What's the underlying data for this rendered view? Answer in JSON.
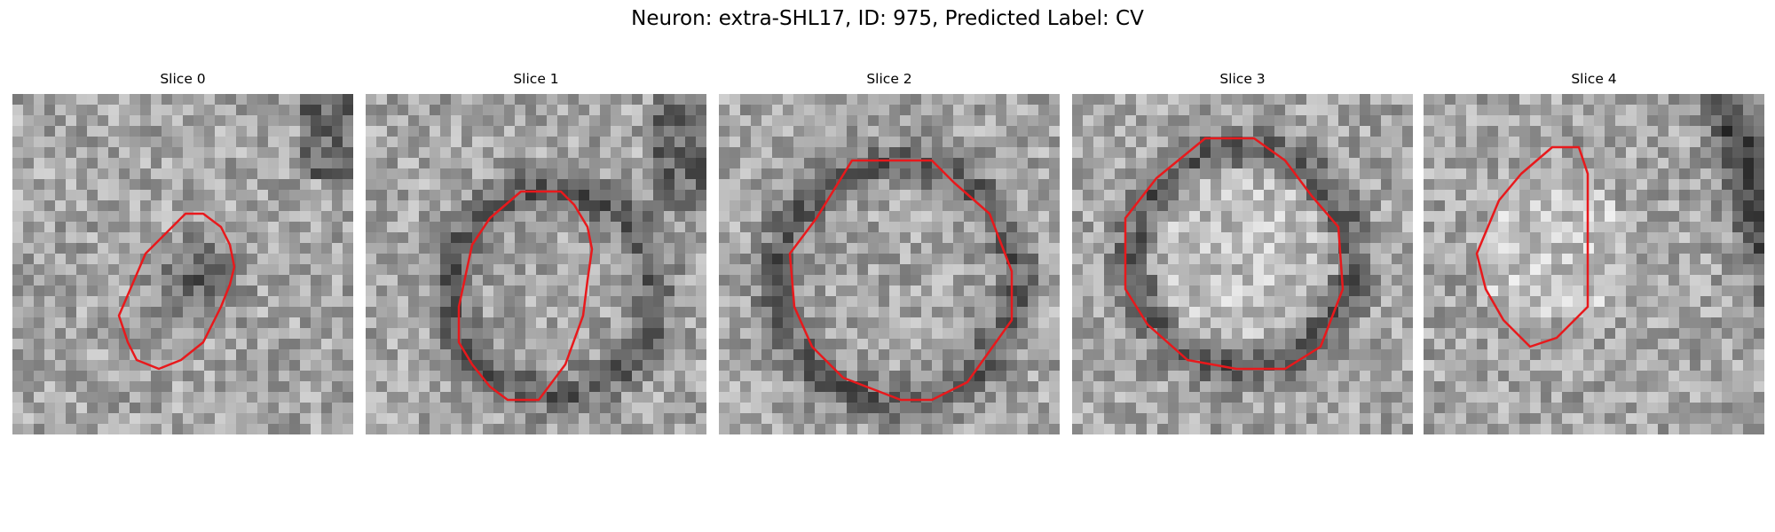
{
  "figure": {
    "title": "Neuron: extra-SHL17, ID: 975, Predicted Label: CV"
  },
  "panels": [
    {
      "title": "Slice 0"
    },
    {
      "title": "Slice 1"
    },
    {
      "title": "Slice 2"
    },
    {
      "title": "Slice 3"
    },
    {
      "title": "Slice 4"
    }
  ],
  "colors": {
    "contour": "#e8191c",
    "background": "#ffffff"
  }
}
